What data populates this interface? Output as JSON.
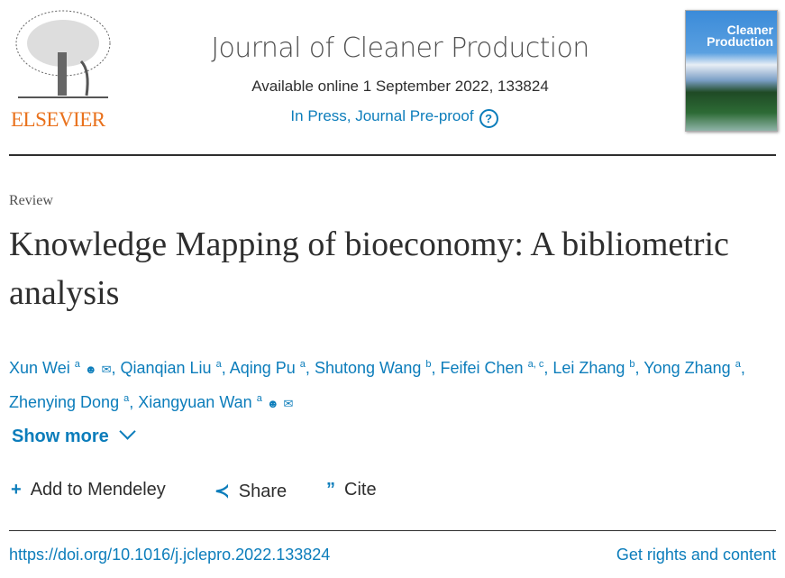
{
  "publisher": {
    "name": "ELSEVIER"
  },
  "journal": {
    "title": "Journal of Cleaner Production",
    "available": "Available online 1 September 2022, 133824",
    "status": "In Press, Journal Pre-proof",
    "help_icon": "question-circle-icon",
    "cover_text": "Journal of Cleaner Production"
  },
  "article": {
    "type": "Review",
    "title": "Knowledge Mapping of bioeconomy: A bibliometric analysis",
    "authors": [
      {
        "name": "Xun Wei",
        "aff": "a",
        "person": true,
        "email": true
      },
      {
        "name": "Qianqian Liu",
        "aff": "a"
      },
      {
        "name": "Aqing Pu",
        "aff": "a"
      },
      {
        "name": "Shutong Wang",
        "aff": "b"
      },
      {
        "name": "Feifei Chen",
        "aff": "a, c"
      },
      {
        "name": "Lei Zhang",
        "aff": "b"
      },
      {
        "name": "Yong Zhang",
        "aff": "a"
      },
      {
        "name": "Zhenying Dong",
        "aff": "a"
      },
      {
        "name": "Xiangyuan Wan",
        "aff": "a",
        "person": true,
        "email": true
      }
    ],
    "show_more": "Show more"
  },
  "actions": {
    "mendeley": "Add to Mendeley",
    "share": "Share",
    "cite": "Cite"
  },
  "footer": {
    "doi": "https://doi.org/10.1016/j.jclepro.2022.133824",
    "rights": "Get rights and content"
  },
  "colors": {
    "link": "#0c7dbb",
    "brand": "#e9711c",
    "text": "#2e2e2e"
  }
}
